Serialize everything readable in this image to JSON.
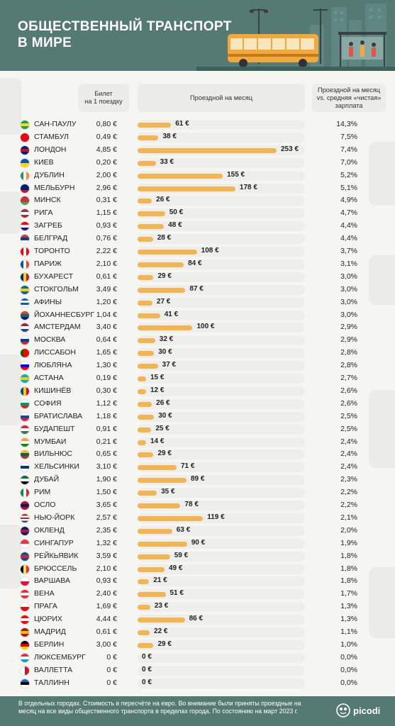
{
  "title": "ОБЩЕСТВЕННЫЙ ТРАНСПОРТ\nВ МИРЕ",
  "columns": {
    "ticket": "Билет\nна 1 поездку",
    "pass": "Проездной на месяц",
    "ratio": "Проездной на месяц\nvs. средняя «чистая»\nзарплата"
  },
  "max_pass": 253,
  "rows": [
    {
      "city": "САН-ПАУЛУ",
      "ticket": "0,80 €",
      "pass": 61,
      "pass_label": "61 €",
      "ratio": "14,3%",
      "flag": "brazil-flag-icon"
    },
    {
      "city": "СТАМБУЛ",
      "ticket": "0,49 €",
      "pass": 38,
      "pass_label": "38 €",
      "ratio": "7,5%",
      "flag": "turkey-flag-icon"
    },
    {
      "city": "ЛОНДОН",
      "ticket": "4,85 €",
      "pass": 253,
      "pass_label": "253 €",
      "ratio": "7,4%",
      "flag": "uk-flag-icon"
    },
    {
      "city": "КИЕВ",
      "ticket": "0,20 €",
      "pass": 33,
      "pass_label": "33 €",
      "ratio": "7,0%",
      "flag": "ukraine-flag-icon"
    },
    {
      "city": "ДУБЛИН",
      "ticket": "2,00 €",
      "pass": 155,
      "pass_label": "155 €",
      "ratio": "5,2%",
      "flag": "ireland-flag-icon"
    },
    {
      "city": "МЕЛЬБУРН",
      "ticket": "2,96 €",
      "pass": 178,
      "pass_label": "178 €",
      "ratio": "5,1%",
      "flag": "australia-flag-icon"
    },
    {
      "city": "МИНСК",
      "ticket": "0,31 €",
      "pass": 26,
      "pass_label": "26 €",
      "ratio": "4,9%",
      "flag": "belarus-flag-icon"
    },
    {
      "city": "РИГА",
      "ticket": "1,15 €",
      "pass": 50,
      "pass_label": "50 €",
      "ratio": "4,7%",
      "flag": "latvia-flag-icon"
    },
    {
      "city": "ЗАГРЕБ",
      "ticket": "0,93 €",
      "pass": 48,
      "pass_label": "48 €",
      "ratio": "4,4%",
      "flag": "croatia-flag-icon"
    },
    {
      "city": "БЕЛГРАД",
      "ticket": "0,76 €",
      "pass": 28,
      "pass_label": "28 €",
      "ratio": "4,4%",
      "flag": "serbia-flag-icon"
    },
    {
      "city": "ТОРОНТО",
      "ticket": "2,22 €",
      "pass": 108,
      "pass_label": "108 €",
      "ratio": "3,7%",
      "flag": "canada-flag-icon"
    },
    {
      "city": "ПАРИЖ",
      "ticket": "2,10 €",
      "pass": 84,
      "pass_label": "84 €",
      "ratio": "3,1%",
      "flag": "france-flag-icon"
    },
    {
      "city": "БУХАРЕСТ",
      "ticket": "0,61 €",
      "pass": 29,
      "pass_label": "29 €",
      "ratio": "3,0%",
      "flag": "romania-flag-icon"
    },
    {
      "city": "СТОКГОЛЬМ",
      "ticket": "3,49 €",
      "pass": 87,
      "pass_label": "87 €",
      "ratio": "3,0%",
      "flag": "sweden-flag-icon"
    },
    {
      "city": "АФИНЫ",
      "ticket": "1,20 €",
      "pass": 27,
      "pass_label": "27 €",
      "ratio": "3,0%",
      "flag": "greece-flag-icon"
    },
    {
      "city": "ЙОХАННЕСБУРГ",
      "ticket": "1,04 €",
      "pass": 41,
      "pass_label": "41 €",
      "ratio": "3,0%",
      "flag": "south-africa-flag-icon"
    },
    {
      "city": "АМСТЕРДАМ",
      "ticket": "3,40 €",
      "pass": 100,
      "pass_label": "100 €",
      "ratio": "2,9%",
      "flag": "netherlands-flag-icon"
    },
    {
      "city": "МОСКВА",
      "ticket": "0,64 €",
      "pass": 32,
      "pass_label": "32 €",
      "ratio": "2,9%",
      "flag": "russia-flag-icon"
    },
    {
      "city": "ЛИССАБОН",
      "ticket": "1,65 €",
      "pass": 30,
      "pass_label": "30 €",
      "ratio": "2,8%",
      "flag": "portugal-flag-icon"
    },
    {
      "city": "ЛЮБЛЯНА",
      "ticket": "1,30 €",
      "pass": 37,
      "pass_label": "37 €",
      "ratio": "2,8%",
      "flag": "slovenia-flag-icon"
    },
    {
      "city": "АСТАНА",
      "ticket": "0,19 €",
      "pass": 15,
      "pass_label": "15 €",
      "ratio": "2,7%",
      "flag": "kazakhstan-flag-icon"
    },
    {
      "city": "КИШИНЁВ",
      "ticket": "0,30 €",
      "pass": 12,
      "pass_label": "12 €",
      "ratio": "2,6%",
      "flag": "moldova-flag-icon"
    },
    {
      "city": "СОФИЯ",
      "ticket": "1,12 €",
      "pass": 26,
      "pass_label": "26 €",
      "ratio": "2,6%",
      "flag": "bulgaria-flag-icon"
    },
    {
      "city": "БРАТИСЛАВА",
      "ticket": "1,18 €",
      "pass": 30,
      "pass_label": "30 €",
      "ratio": "2,5%",
      "flag": "slovakia-flag-icon"
    },
    {
      "city": "БУДАПЕШТ",
      "ticket": "0,91 €",
      "pass": 25,
      "pass_label": "25 €",
      "ratio": "2,5%",
      "flag": "hungary-flag-icon"
    },
    {
      "city": "МУМБАИ",
      "ticket": "0,21 €",
      "pass": 14,
      "pass_label": "14 €",
      "ratio": "2,4%",
      "flag": "india-flag-icon"
    },
    {
      "city": "ВИЛЬНЮС",
      "ticket": "0,65 €",
      "pass": 29,
      "pass_label": "29 €",
      "ratio": "2,4%",
      "flag": "lithuania-flag-icon"
    },
    {
      "city": "ХЕЛЬСИНКИ",
      "ticket": "3,10 €",
      "pass": 71,
      "pass_label": "71 €",
      "ratio": "2,4%",
      "flag": "finland-flag-icon"
    },
    {
      "city": "ДУБАЙ",
      "ticket": "1,90 €",
      "pass": 89,
      "pass_label": "89 €",
      "ratio": "2,3%",
      "flag": "uae-flag-icon"
    },
    {
      "city": "РИМ",
      "ticket": "1,50 €",
      "pass": 35,
      "pass_label": "35 €",
      "ratio": "2,2%",
      "flag": "italy-flag-icon"
    },
    {
      "city": "ОСЛО",
      "ticket": "3,65 €",
      "pass": 78,
      "pass_label": "78 €",
      "ratio": "2,2%",
      "flag": "norway-flag-icon"
    },
    {
      "city": "НЬЮ-ЙОРК",
      "ticket": "2,57 €",
      "pass": 119,
      "pass_label": "119 €",
      "ratio": "2,1%",
      "flag": "usa-flag-icon"
    },
    {
      "city": "ОКЛЕНД",
      "ticket": "2,35 €",
      "pass": 63,
      "pass_label": "63 €",
      "ratio": "2,0%",
      "flag": "new-zealand-flag-icon"
    },
    {
      "city": "СИНГАПУР",
      "ticket": "1,32 €",
      "pass": 90,
      "pass_label": "90 €",
      "ratio": "1,9%",
      "flag": "singapore-flag-icon"
    },
    {
      "city": "РЕЙКЬЯВИК",
      "ticket": "3,59 €",
      "pass": 59,
      "pass_label": "59 €",
      "ratio": "1,8%",
      "flag": "iceland-flag-icon"
    },
    {
      "city": "БРЮССЕЛЬ",
      "ticket": "2,10 €",
      "pass": 49,
      "pass_label": "49 €",
      "ratio": "1,8%",
      "flag": "belgium-flag-icon"
    },
    {
      "city": "ВАРШАВА",
      "ticket": "0,93 €",
      "pass": 21,
      "pass_label": "21 €",
      "ratio": "1,8%",
      "flag": "poland-flag-icon"
    },
    {
      "city": "ВЕНА",
      "ticket": "2,40 €",
      "pass": 51,
      "pass_label": "51 €",
      "ratio": "1,7%",
      "flag": "austria-flag-icon"
    },
    {
      "city": "ПРАГА",
      "ticket": "1,69 €",
      "pass": 23,
      "pass_label": "23 €",
      "ratio": "1,3%",
      "flag": "czech-flag-icon"
    },
    {
      "city": "ЦЮРИХ",
      "ticket": "4,44 €",
      "pass": 86,
      "pass_label": "86 €",
      "ratio": "1,3%",
      "flag": "switzerland-flag-icon"
    },
    {
      "city": "МАДРИД",
      "ticket": "0,61 €",
      "pass": 22,
      "pass_label": "22 €",
      "ratio": "1,1%",
      "flag": "spain-flag-icon"
    },
    {
      "city": "БЕРЛИН",
      "ticket": "3,00 €",
      "pass": 29,
      "pass_label": "29 €",
      "ratio": "1,0%",
      "flag": "germany-flag-icon"
    },
    {
      "city": "ЛЮКСЕМБУРГ",
      "ticket": "0 €",
      "pass": 0,
      "pass_label": "0 €",
      "ratio": "0,0%",
      "flag": "luxembourg-flag-icon"
    },
    {
      "city": "ВАЛЛЕТТА",
      "ticket": "0 €",
      "pass": 0,
      "pass_label": "0 €",
      "ratio": "0,0%",
      "flag": "malta-flag-icon"
    },
    {
      "city": "ТАЛЛИНН",
      "ticket": "0 €",
      "pass": 0,
      "pass_label": "0 €",
      "ratio": "0,0%",
      "flag": "estonia-flag-icon"
    }
  ],
  "footnote": "В отдельных городах. Стоимость в пересчёте на евро. Во внимание были приняты проездные на месяц на все виды общественного транспорта в пределах города. По состоянию на март 2023 г.",
  "brand": "picodi",
  "colors": {
    "header": "#547a73",
    "bar": "#f3b552",
    "track": "#eeeeec",
    "bus": "#f2a93b"
  }
}
